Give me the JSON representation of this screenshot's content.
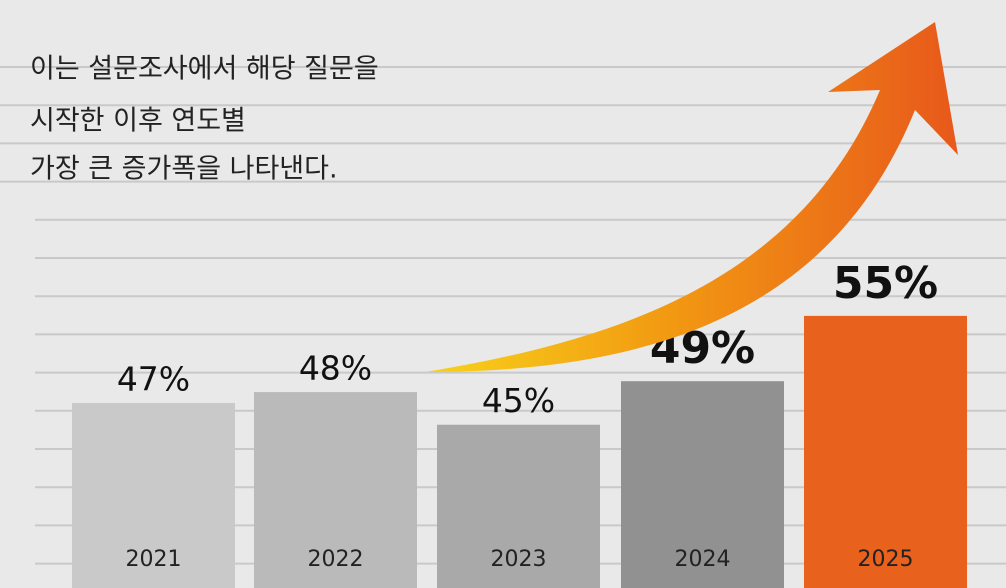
{
  "chart_data": {
    "type": "bar",
    "annotation": [
      "이는 설문조사에서 해당 질문을",
      "시작한 이후 연도별",
      "가장 큰 증가폭을 나타낸다."
    ],
    "categories": [
      "2021",
      "2022",
      "2023",
      "2024",
      "2025"
    ],
    "values": [
      47,
      48,
      45,
      49,
      55
    ],
    "value_labels": [
      "47%",
      "48%",
      "45%",
      "49%",
      "55%"
    ],
    "colors": [
      "#c9c9c9",
      "#bababa",
      "#a9a9a9",
      "#919191",
      "#e8611d"
    ],
    "ylim": [
      30,
      56
    ]
  }
}
